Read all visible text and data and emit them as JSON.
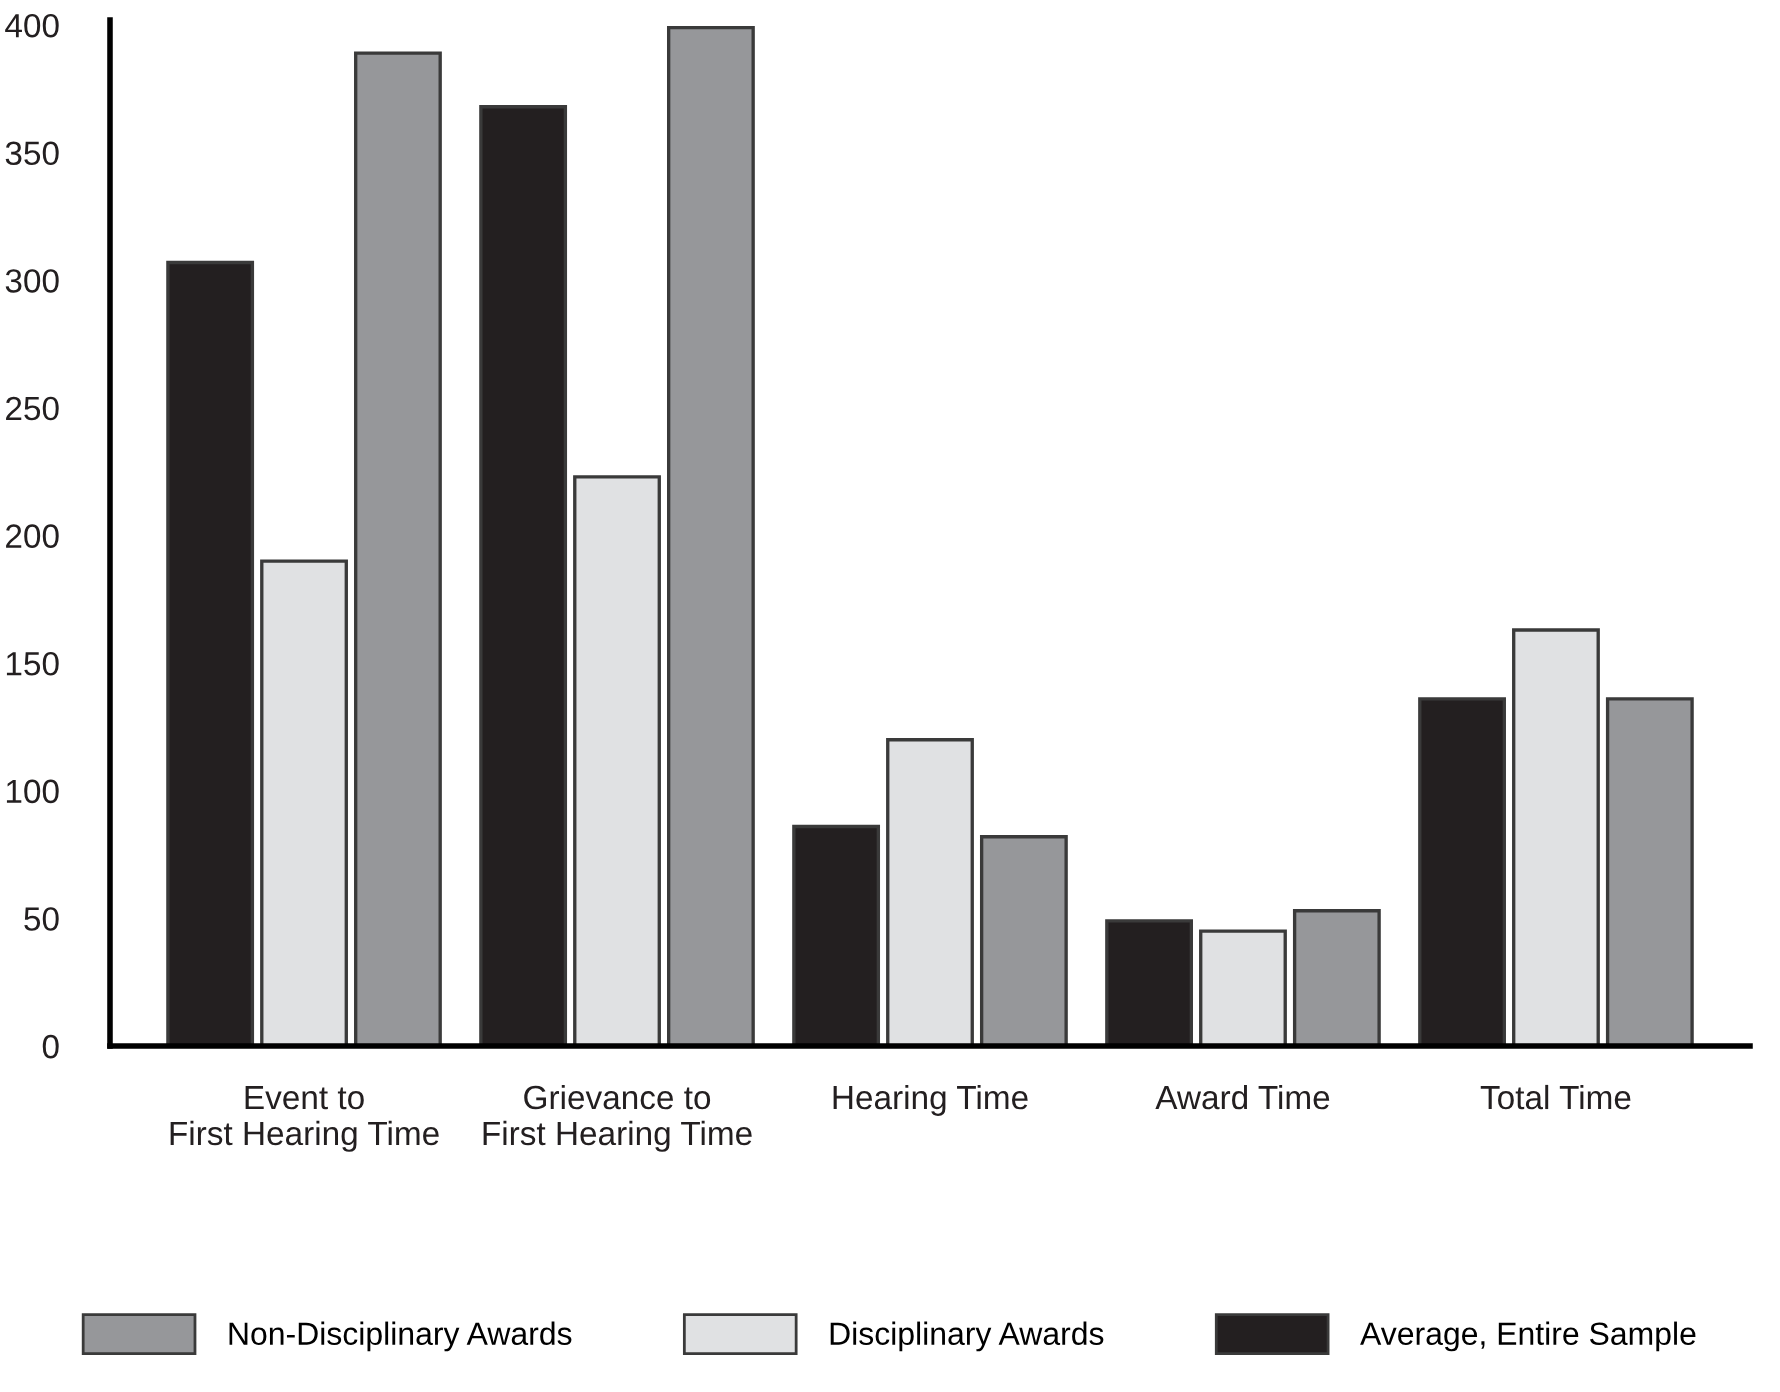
{
  "chart_data": {
    "type": "bar",
    "categories": [
      "Event to\nFirst Hearing Time",
      "Grievance to\nFirst Hearing Time",
      "Hearing Time",
      "Award Time",
      "Total Time"
    ],
    "series": [
      {
        "name": "Average, Entire Sample",
        "color": "#231f20",
        "values": [
          307,
          368,
          86,
          49,
          136
        ]
      },
      {
        "name": "Disciplinary Awards",
        "color": "#e0e1e3",
        "values": [
          190,
          223,
          120,
          45,
          163
        ]
      },
      {
        "name": "Non-Disciplinary Awards",
        "color": "#96979a",
        "values": [
          389,
          399,
          82,
          53,
          136
        ]
      }
    ],
    "ylim": [
      0,
      402
    ],
    "yticks": [
      0,
      50,
      100,
      150,
      200,
      250,
      300,
      350,
      400
    ],
    "grid": false,
    "legend": "bottom"
  }
}
